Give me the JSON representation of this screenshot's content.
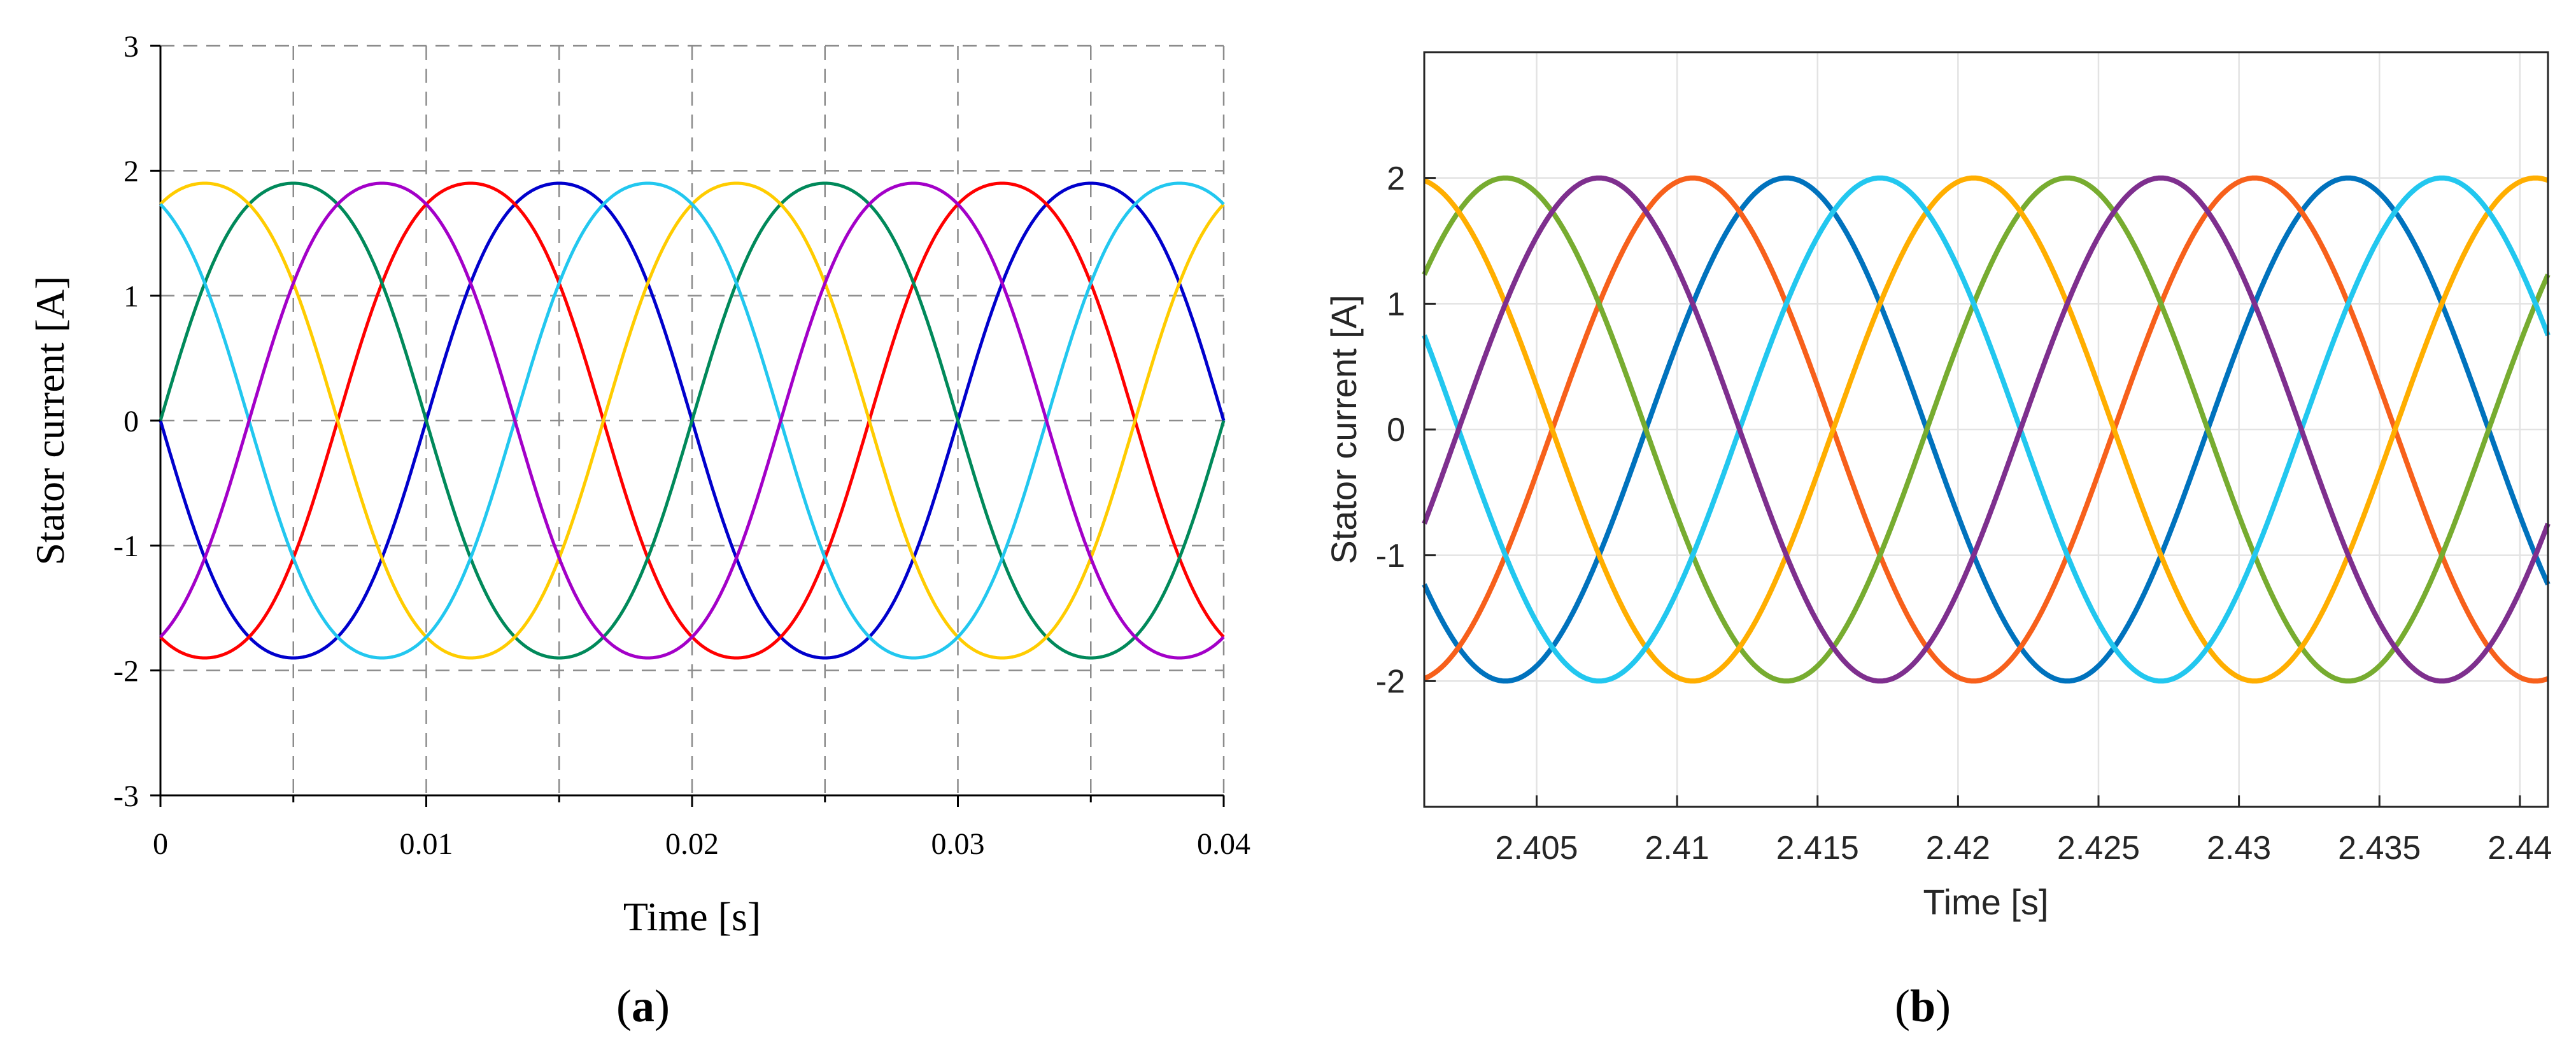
{
  "chart_data": [
    {
      "type": "line",
      "panel_label": "(a)",
      "panel_letter": "a",
      "xlabel": "Time [s]",
      "ylabel": "Stator current [A]",
      "xlim": [
        0,
        0.04
      ],
      "ylim": [
        -3,
        3
      ],
      "x_ticks": [
        0,
        0.01,
        0.02,
        0.03,
        0.04
      ],
      "x_tick_labels": [
        "0",
        "0.01",
        "0.02",
        "0.03",
        "0.04"
      ],
      "x_minor_ticks": [
        0.005,
        0.015,
        0.025,
        0.035
      ],
      "y_ticks": [
        -3,
        -2,
        -1,
        0,
        1,
        2,
        3
      ],
      "y_tick_labels": [
        "-3",
        "-2",
        "-1",
        "0",
        "1",
        "2",
        "3"
      ],
      "grid": "dashed",
      "legend": "none",
      "waveform": {
        "amplitude": 2.0,
        "frequency_hz": 50,
        "phases": 6,
        "phase_step_deg": 60,
        "third_harmonic": 0.05
      },
      "series": [
        {
          "color": "#0000cc",
          "phase_deg": 180
        },
        {
          "color": "#ff0000",
          "phase_deg": 240
        },
        {
          "color": "#00895a",
          "phase_deg": 0
        },
        {
          "color": "#ffcc00",
          "phase_deg": 60
        },
        {
          "color": "#22c7ef",
          "phase_deg": 120
        },
        {
          "color": "#a300c8",
          "phase_deg": 300
        }
      ]
    },
    {
      "type": "line",
      "panel_label": "(b)",
      "panel_letter": "b",
      "xlabel": "Time [s]",
      "ylabel": "Stator current [A]",
      "xlim": [
        2.401,
        2.441
      ],
      "ylim": [
        -3,
        3
      ],
      "x_ticks": [
        2.405,
        2.41,
        2.415,
        2.42,
        2.425,
        2.43,
        2.435,
        2.44
      ],
      "x_tick_labels": [
        "2.405",
        "2.41",
        "2.415",
        "2.42",
        "2.425",
        "2.43",
        "2.435",
        "2.44"
      ],
      "y_ticks": [
        -2,
        -1,
        0,
        1,
        2
      ],
      "y_tick_labels": [
        "-2",
        "-1",
        "0",
        "1",
        "2"
      ],
      "grid": "solid-light",
      "legend": "none",
      "waveform": {
        "amplitude": 2.0,
        "frequency_hz": 50,
        "phases": 6,
        "phase_step_deg": 60,
        "third_harmonic": 0.0
      },
      "series": [
        {
          "color": "#0072bd",
          "phase_deg": 200
        },
        {
          "color": "#f7601b",
          "phase_deg": 260
        },
        {
          "color": "#77ac30",
          "phase_deg": 20
        },
        {
          "color": "#ffae00",
          "phase_deg": 80
        },
        {
          "color": "#22c7ef",
          "phase_deg": 140
        },
        {
          "color": "#7e2f8e",
          "phase_deg": 320
        }
      ]
    }
  ]
}
